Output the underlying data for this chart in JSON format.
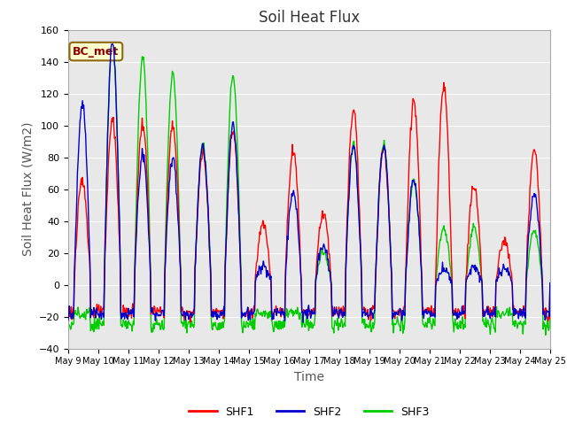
{
  "title": "Soil Heat Flux",
  "ylabel": "Soil Heat Flux (W/m2)",
  "xlabel": "Time",
  "annotation": "BC_met",
  "ylim": [
    -40,
    160
  ],
  "yticks": [
    -40,
    -20,
    0,
    20,
    40,
    60,
    80,
    100,
    120,
    140,
    160
  ],
  "colors": {
    "SHF1": "#ff0000",
    "SHF2": "#0000cc",
    "SHF3": "#00cc00"
  },
  "fig_bg": "#ffffff",
  "axes_bg": "#e8e8e8",
  "title_fontsize": 12,
  "label_fontsize": 10,
  "tick_fontsize": 8,
  "line_width": 1.0,
  "num_days": 16,
  "start_day": 9
}
